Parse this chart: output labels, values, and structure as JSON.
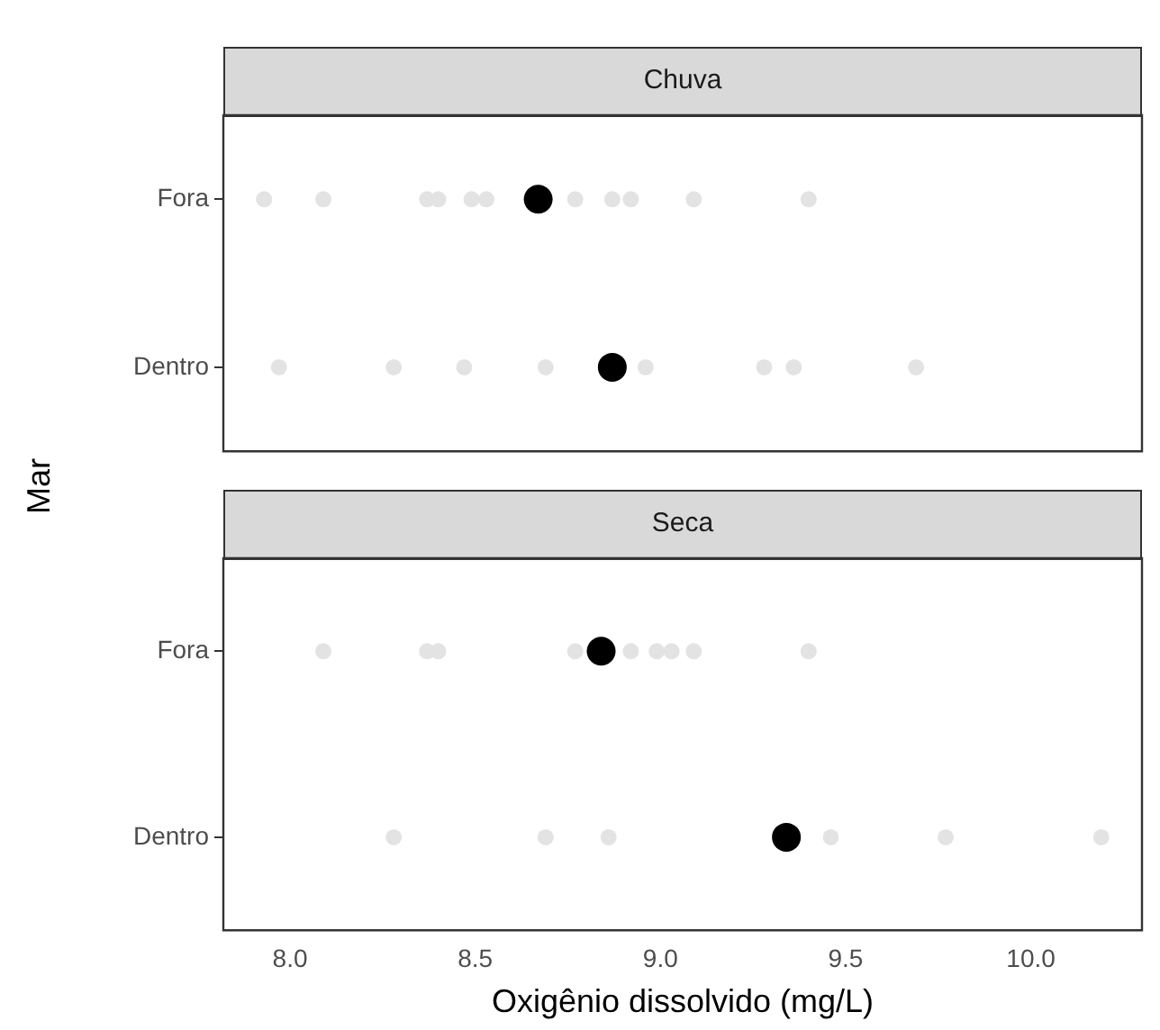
{
  "chart_data": [
    {
      "type": "scatter",
      "title": "Chuva",
      "ylabel": "Mar",
      "orientation": "horizontal",
      "categories": [
        "Fora",
        "Dentro"
      ],
      "xlim": [
        7.82,
        10.3
      ],
      "tick_labels": "y",
      "grid": false,
      "legend": false,
      "marker": "circle",
      "series": [
        {
          "color": "#e3e3e3",
          "x": [
            "Fora",
            "Fora",
            "Fora",
            "Fora",
            "Fora",
            "Fora",
            "Fora",
            "Fora",
            "Fora",
            "Fora",
            "Fora",
            "Dentro",
            "Dentro",
            "Dentro",
            "Dentro",
            "Dentro",
            "Dentro",
            "Dentro",
            "Dentro"
          ],
          "values": [
            7.93,
            8.09,
            8.37,
            8.4,
            8.49,
            8.53,
            8.77,
            8.87,
            8.92,
            9.09,
            9.4,
            7.97,
            8.28,
            8.47,
            8.69,
            8.96,
            9.28,
            9.36,
            9.69
          ]
        },
        {
          "color": "#000000",
          "x": [
            "Fora",
            "Dentro"
          ],
          "values": [
            8.67,
            8.87
          ]
        }
      ]
    },
    {
      "type": "scatter",
      "title": "Seca",
      "xlabel": "Oxigênio dissolvido (mg/L)",
      "orientation": "horizontal",
      "categories": [
        "Fora",
        "Dentro"
      ],
      "xlim": [
        7.82,
        10.3
      ],
      "xticks": [
        {
          "value": 8,
          "label": "8.0"
        },
        {
          "value": 8.5,
          "label": "8.5"
        },
        {
          "value": 9,
          "label": "9.0"
        },
        {
          "value": 9.5,
          "label": "9.5"
        },
        {
          "value": 10,
          "label": "10.0"
        }
      ],
      "grid": false,
      "legend": false,
      "marker": "circle",
      "series": [
        {
          "color": "#e3e3e3",
          "x": [
            "Fora",
            "Fora",
            "Fora",
            "Fora",
            "Fora",
            "Fora",
            "Fora",
            "Fora",
            "Fora",
            "Dentro",
            "Dentro",
            "Dentro",
            "Dentro",
            "Dentro",
            "Dentro"
          ],
          "values": [
            8.09,
            8.37,
            8.4,
            8.77,
            8.92,
            8.99,
            9.03,
            9.09,
            9.4,
            8.28,
            8.69,
            8.86,
            9.46,
            9.77,
            10.19
          ]
        },
        {
          "color": "#000000",
          "x": [
            "Fora",
            "Dentro"
          ],
          "values": [
            8.84,
            9.34
          ]
        }
      ]
    }
  ]
}
